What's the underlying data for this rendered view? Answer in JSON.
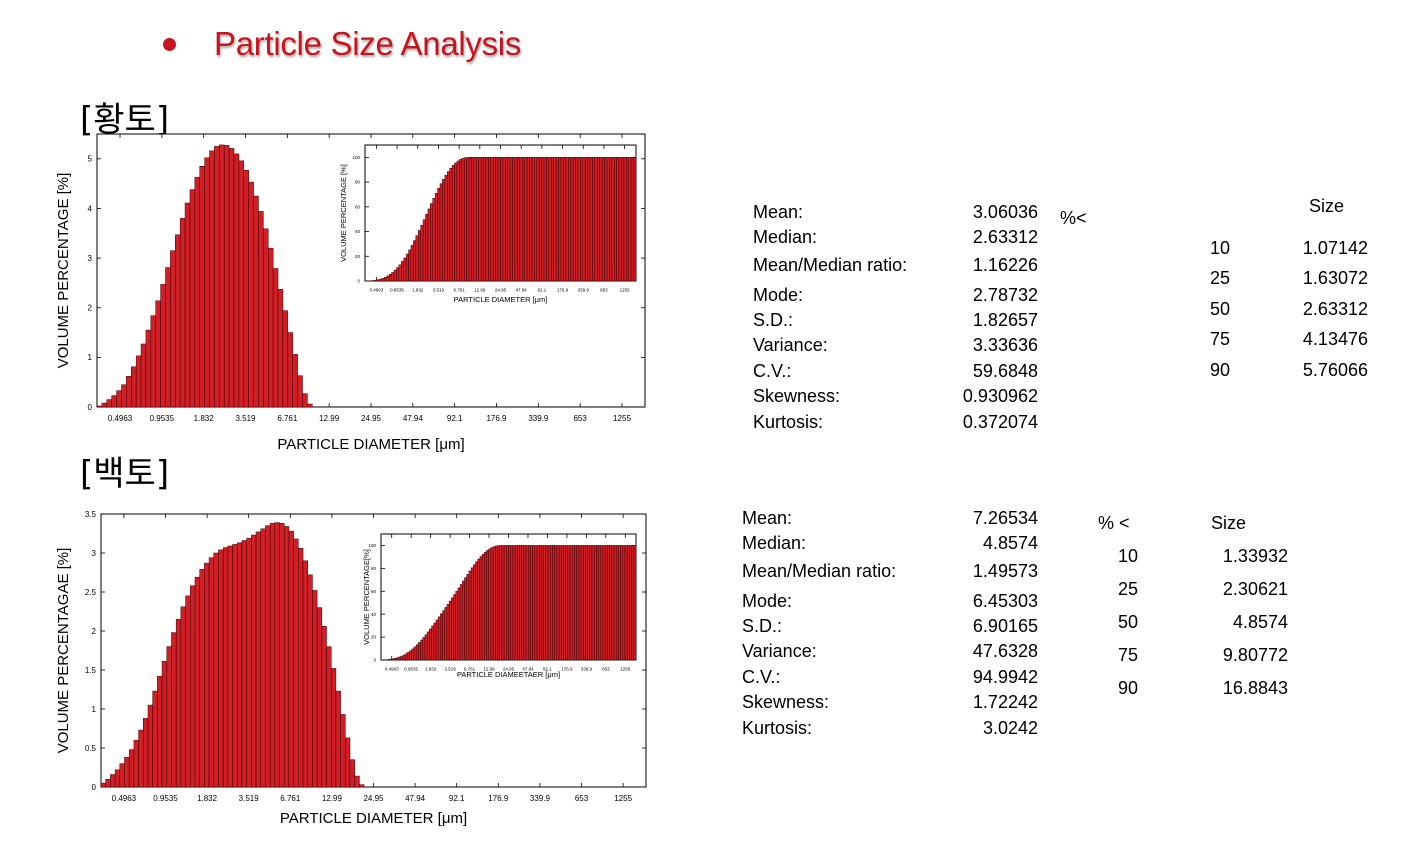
{
  "header": {
    "title": "Particle Size Analysis",
    "accent_color": "#c8141e"
  },
  "samples": [
    {
      "label": "[황토]",
      "stats": [
        {
          "name": "Mean:",
          "value": "3.06036"
        },
        {
          "name": "Median:",
          "value": "2.63312"
        },
        {
          "name": "Mean/Median ratio:",
          "value": "1.16226"
        },
        {
          "name": "Mode:",
          "value": "2.78732"
        },
        {
          "name": "S.D.:",
          "value": "1.82657"
        },
        {
          "name": "Variance:",
          "value": "3.33636"
        },
        {
          "name": "C.V.:",
          "value": "59.6848"
        },
        {
          "name": "Skewness:",
          "value": "0.930962"
        },
        {
          "name": "Kurtosis:",
          "value": "0.372074"
        }
      ],
      "percentile_header": "%<",
      "size_header": "Size",
      "percentiles": [
        {
          "pct": "10",
          "size": "1.07142"
        },
        {
          "pct": "25",
          "size": "1.63072"
        },
        {
          "pct": "50",
          "size": "2.63312"
        },
        {
          "pct": "75",
          "size": "4.13476"
        },
        {
          "pct": "90",
          "size": "5.76066"
        }
      ]
    },
    {
      "label": "[백토]",
      "stats": [
        {
          "name": "Mean:",
          "value": "7.26534"
        },
        {
          "name": "Median:",
          "value": "4.8574"
        },
        {
          "name": "Mean/Median ratio:",
          "value": "1.49573"
        },
        {
          "name": "Mode:",
          "value": "6.45303"
        },
        {
          "name": "S.D.:",
          "value": "6.90165"
        },
        {
          "name": "Variance:",
          "value": "47.6328"
        },
        {
          "name": "C.V.:",
          "value": "94.9942"
        },
        {
          "name": "Skewness:",
          "value": "1.72242"
        },
        {
          "name": "Kurtosis:",
          "value": "3.0242"
        }
      ],
      "percentile_header": "% <",
      "size_header": "Size",
      "percentiles": [
        {
          "pct": "10",
          "size": "1.33932"
        },
        {
          "pct": "25",
          "size": "2.30621"
        },
        {
          "pct": "50",
          "size": "4.8574"
        },
        {
          "pct": "75",
          "size": "9.80772"
        },
        {
          "pct": "90",
          "size": "16.8843"
        }
      ]
    }
  ],
  "chart_data": [
    {
      "type": "bar",
      "title": "",
      "xlabel": "PARTICLE DIAMETER [μm]",
      "ylabel": "VOLUME PERCENTAGE [%]",
      "x_tick_labels": [
        "0.4963",
        "0.9535",
        "1.832",
        "3.519",
        "6.761",
        "12.99",
        "24.95",
        "47.94",
        "92.1",
        "176.9",
        "339.9",
        "653",
        "1255"
      ],
      "y_ticks": [
        "0",
        "1",
        "2",
        "3",
        "4",
        "5"
      ],
      "ylim": [
        0,
        5.5
      ],
      "bar_color": "#d01f26",
      "values": [
        0.02,
        0.08,
        0.15,
        0.23,
        0.33,
        0.45,
        0.62,
        0.81,
        1.03,
        1.27,
        1.55,
        1.84,
        2.14,
        2.47,
        2.81,
        3.15,
        3.47,
        3.8,
        4.11,
        4.38,
        4.63,
        4.85,
        5.02,
        5.16,
        5.25,
        5.28,
        5.27,
        5.21,
        5.1,
        4.96,
        4.77,
        4.53,
        4.25,
        3.94,
        3.59,
        3.2,
        2.79,
        2.37,
        1.94,
        1.5,
        1.06,
        0.63,
        0.27,
        0.06,
        0,
        0,
        0,
        0,
        0,
        0,
        0,
        0,
        0,
        0,
        0,
        0,
        0,
        0,
        0,
        0,
        0,
        0,
        0,
        0,
        0,
        0,
        0,
        0,
        0,
        0,
        0,
        0,
        0,
        0,
        0,
        0,
        0,
        0,
        0,
        0,
        0,
        0,
        0,
        0,
        0,
        0,
        0,
        0,
        0,
        0,
        0,
        0,
        0,
        0,
        0,
        0,
        0,
        0,
        0,
        0,
        0,
        0,
        0,
        0,
        0,
        0,
        0,
        0,
        0,
        0,
        0,
        0
      ],
      "inset": {
        "type": "bar",
        "xlabel": "PARTICLE DIAMETER [μm]",
        "ylabel": "VOLUME PERCENTAGE [%]",
        "y_ticks": [
          "0",
          "20",
          "40",
          "60",
          "80",
          "100"
        ],
        "x_tick_labels": [
          "0.4963",
          "0.9535",
          "1.832",
          "3.519",
          "6.761",
          "12.99",
          "24.95",
          "47.94",
          "92.1",
          "176.9",
          "339.9",
          "653",
          "1255"
        ],
        "ylim": [
          0,
          110
        ],
        "description": "cumulative"
      }
    },
    {
      "type": "bar",
      "title": "",
      "xlabel": "PARTICLE DIAMETER [μm]",
      "ylabel": "VOLUME PERCENTAGAE [%]",
      "x_tick_labels": [
        "0.4963",
        "0.9535",
        "1.832",
        "3.519",
        "6.761",
        "12.99",
        "24.95",
        "47.94",
        "92.1",
        "176.9",
        "339.9",
        "653",
        "1255"
      ],
      "y_ticks": [
        "0",
        "0.5",
        "1",
        "1.5",
        "2",
        "2.5",
        "3",
        "3.5"
      ],
      "ylim": [
        0,
        3.5
      ],
      "bar_color": "#d01f26",
      "values": [
        0.05,
        0.1,
        0.16,
        0.22,
        0.3,
        0.38,
        0.48,
        0.6,
        0.73,
        0.88,
        1.05,
        1.23,
        1.42,
        1.61,
        1.8,
        1.98,
        2.15,
        2.31,
        2.45,
        2.58,
        2.69,
        2.79,
        2.87,
        2.94,
        3.0,
        3.04,
        3.07,
        3.09,
        3.11,
        3.13,
        3.16,
        3.19,
        3.23,
        3.27,
        3.31,
        3.35,
        3.38,
        3.39,
        3.38,
        3.34,
        3.28,
        3.18,
        3.06,
        2.9,
        2.72,
        2.52,
        2.3,
        2.06,
        1.8,
        1.52,
        1.23,
        0.93,
        0.63,
        0.35,
        0.14,
        0.03,
        0,
        0,
        0,
        0,
        0,
        0,
        0,
        0,
        0,
        0,
        0,
        0,
        0,
        0,
        0,
        0,
        0,
        0,
        0,
        0,
        0,
        0,
        0,
        0,
        0,
        0,
        0,
        0,
        0,
        0,
        0,
        0,
        0,
        0,
        0,
        0,
        0,
        0,
        0,
        0,
        0,
        0,
        0,
        0,
        0,
        0,
        0,
        0,
        0,
        0,
        0,
        0,
        0,
        0,
        0,
        0,
        0,
        0,
        0,
        0
      ],
      "inset": {
        "type": "bar",
        "xlabel": "PARTICLE DIAMEETAER [μm]",
        "ylabel": "VOLUME PERCENTAGE[%]",
        "y_ticks": [
          "0",
          "20",
          "40",
          "60",
          "80",
          "100"
        ],
        "x_tick_labels": [
          "0.4963",
          "0.9535",
          "1.832",
          "3.519",
          "6.761",
          "12.99",
          "24.95",
          "47.94",
          "92.1",
          "176.9",
          "339.9",
          "653",
          "1255"
        ],
        "ylim": [
          0,
          110
        ],
        "description": "cumulative"
      }
    }
  ]
}
